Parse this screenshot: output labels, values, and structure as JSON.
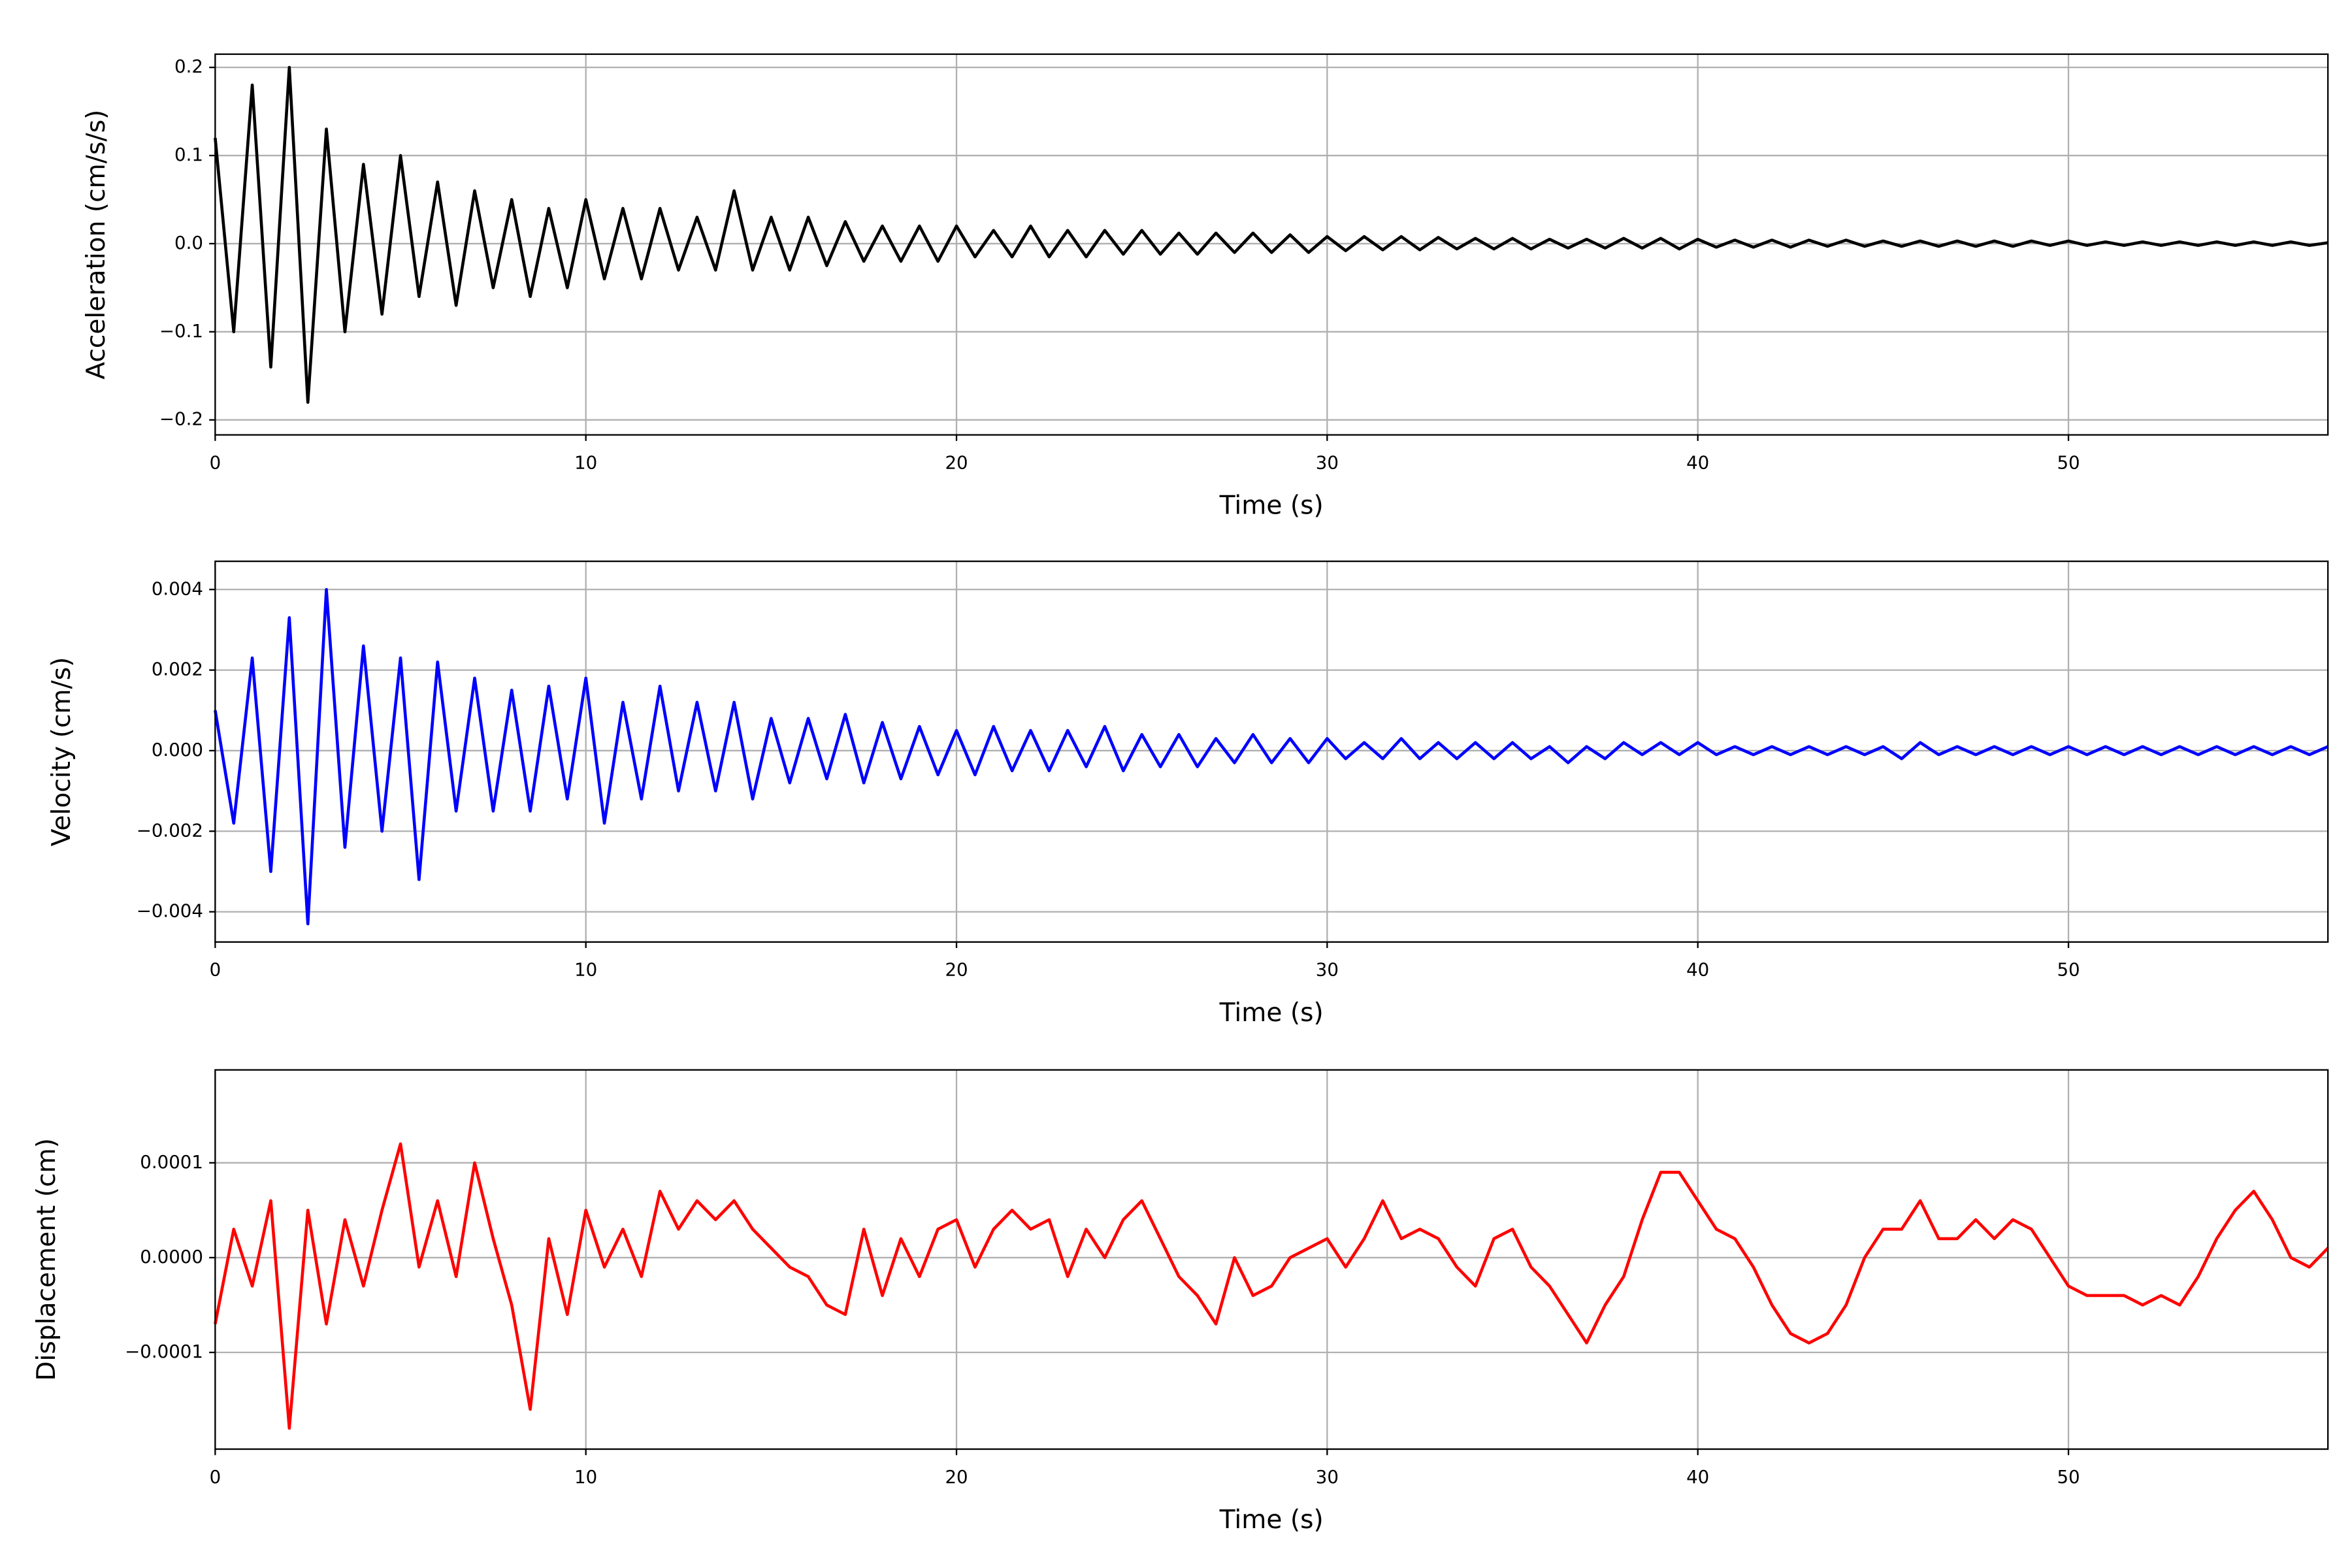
{
  "chart_data": [
    {
      "type": "line",
      "xlabel": "Time (s)",
      "ylabel": "Acceleration (cm/s/s)",
      "color": "#000000",
      "grid": true,
      "x": [
        0,
        0.5,
        1,
        1.5,
        2,
        2.5,
        3,
        3.5,
        4,
        4.5,
        5,
        5.5,
        6,
        6.5,
        7,
        7.5,
        8,
        8.5,
        9,
        9.5,
        10,
        10.5,
        11,
        11.5,
        12,
        12.5,
        13,
        13.5,
        14,
        14.5,
        15,
        15.5,
        16,
        16.5,
        17,
        17.5,
        18,
        18.5,
        19,
        19.5,
        20,
        20.5,
        21,
        21.5,
        22,
        22.5,
        23,
        23.5,
        24,
        24.5,
        25,
        25.5,
        26,
        26.5,
        27,
        27.5,
        28,
        28.5,
        29,
        29.5,
        30,
        30.5,
        31,
        31.5,
        32,
        32.5,
        33,
        33.5,
        34,
        34.5,
        35,
        35.5,
        36,
        36.5,
        37,
        37.5,
        38,
        38.5,
        39,
        39.5,
        40,
        40.5,
        41,
        41.5,
        42,
        42.5,
        43,
        43.5,
        44,
        44.5,
        45,
        45.5,
        46,
        46.5,
        47,
        47.5,
        48,
        48.5,
        49,
        49.5,
        50,
        50.5,
        51,
        51.5,
        52,
        52.5,
        53,
        53.5,
        54,
        54.5,
        55,
        55.5,
        56,
        56.5,
        57
      ],
      "values": [
        0.12,
        -0.1,
        0.18,
        -0.14,
        0.2,
        -0.18,
        0.13,
        -0.1,
        0.09,
        -0.08,
        0.1,
        -0.06,
        0.07,
        -0.07,
        0.06,
        -0.05,
        0.05,
        -0.06,
        0.04,
        -0.05,
        0.05,
        -0.04,
        0.04,
        -0.04,
        0.04,
        -0.03,
        0.03,
        -0.03,
        0.06,
        -0.03,
        0.03,
        -0.03,
        0.03,
        -0.025,
        0.025,
        -0.02,
        0.02,
        -0.02,
        0.02,
        -0.02,
        0.02,
        -0.015,
        0.015,
        -0.015,
        0.02,
        -0.015,
        0.015,
        -0.015,
        0.015,
        -0.012,
        0.015,
        -0.012,
        0.012,
        -0.012,
        0.012,
        -0.01,
        0.012,
        -0.01,
        0.01,
        -0.01,
        0.008,
        -0.008,
        0.008,
        -0.007,
        0.008,
        -0.007,
        0.007,
        -0.006,
        0.006,
        -0.006,
        0.006,
        -0.006,
        0.005,
        -0.005,
        0.005,
        -0.005,
        0.006,
        -0.005,
        0.006,
        -0.006,
        0.005,
        -0.004,
        0.004,
        -0.004,
        0.004,
        -0.004,
        0.004,
        -0.003,
        0.004,
        -0.003,
        0.003,
        -0.003,
        0.003,
        -0.003,
        0.003,
        -0.003,
        0.003,
        -0.003,
        0.003,
        -0.002,
        0.003,
        -0.002,
        0.002,
        -0.002,
        0.002,
        -0.002,
        0.002,
        -0.002,
        0.002,
        -0.002,
        0.002,
        -0.002,
        0.002,
        -0.002,
        0.001
      ],
      "xlim": [
        0,
        57
      ],
      "xticks": [
        0,
        10,
        20,
        30,
        40,
        50
      ],
      "ylim": [
        -0.217,
        0.215
      ],
      "yticks": [
        {
          "value": -0.2,
          "label": "−0.2"
        },
        {
          "value": -0.1,
          "label": "−0.1"
        },
        {
          "value": 0,
          "label": "0.0"
        },
        0.1,
        0.2
      ]
    },
    {
      "type": "line",
      "xlabel": "Time (s)",
      "ylabel": "Velocity (cm/s)",
      "color": "#0000ff",
      "grid": true,
      "x": [
        0,
        0.5,
        1,
        1.5,
        2,
        2.5,
        3,
        3.5,
        4,
        4.5,
        5,
        5.5,
        6,
        6.5,
        7,
        7.5,
        8,
        8.5,
        9,
        9.5,
        10,
        10.5,
        11,
        11.5,
        12,
        12.5,
        13,
        13.5,
        14,
        14.5,
        15,
        15.5,
        16,
        16.5,
        17,
        17.5,
        18,
        18.5,
        19,
        19.5,
        20,
        20.5,
        21,
        21.5,
        22,
        22.5,
        23,
        23.5,
        24,
        24.5,
        25,
        25.5,
        26,
        26.5,
        27,
        27.5,
        28,
        28.5,
        29,
        29.5,
        30,
        30.5,
        31,
        31.5,
        32,
        32.5,
        33,
        33.5,
        34,
        34.5,
        35,
        35.5,
        36,
        36.5,
        37,
        37.5,
        38,
        38.5,
        39,
        39.5,
        40,
        40.5,
        41,
        41.5,
        42,
        42.5,
        43,
        43.5,
        44,
        44.5,
        45,
        45.5,
        46,
        46.5,
        47,
        47.5,
        48,
        48.5,
        49,
        49.5,
        50,
        50.5,
        51,
        51.5,
        52,
        52.5,
        53,
        53.5,
        54,
        54.5,
        55,
        55.5,
        56,
        56.5,
        57
      ],
      "values": [
        0.001,
        -0.0018,
        0.0023,
        -0.003,
        0.0033,
        -0.0043,
        0.004,
        -0.0024,
        0.0026,
        -0.002,
        0.0023,
        -0.0032,
        0.0022,
        -0.0015,
        0.0018,
        -0.0015,
        0.0015,
        -0.0015,
        0.0016,
        -0.0012,
        0.0018,
        -0.0018,
        0.0012,
        -0.0012,
        0.0016,
        -0.001,
        0.0012,
        -0.001,
        0.0012,
        -0.0012,
        0.0008,
        -0.0008,
        0.0008,
        -0.0007,
        0.0009,
        -0.0008,
        0.0007,
        -0.0007,
        0.0006,
        -0.0006,
        0.0005,
        -0.0006,
        0.0006,
        -0.0005,
        0.0005,
        -0.0005,
        0.0005,
        -0.0004,
        0.0006,
        -0.0005,
        0.0004,
        -0.0004,
        0.0004,
        -0.0004,
        0.0003,
        -0.0003,
        0.0004,
        -0.0003,
        0.0003,
        -0.0003,
        0.0003,
        -0.0002,
        0.0002,
        -0.0002,
        0.0003,
        -0.0002,
        0.0002,
        -0.0002,
        0.0002,
        -0.0002,
        0.0002,
        -0.0002,
        0.0001,
        -0.0003,
        0.0001,
        -0.0002,
        0.0002,
        -0.0001,
        0.0002,
        -0.0001,
        0.0002,
        -0.0001,
        0.0001,
        -0.0001,
        0.0001,
        -0.0001,
        0.0001,
        -0.0001,
        0.0001,
        -0.0001,
        0.0001,
        -0.0002,
        0.0002,
        -0.0001,
        0.0001,
        -0.0001,
        0.0001,
        -0.0001,
        0.0001,
        -0.0001,
        0.0001,
        -0.0001,
        0.0001,
        -0.0001,
        0.0001,
        -0.0001,
        0.0001,
        -0.0001,
        0.0001,
        -0.0001,
        0.0001,
        -0.0001,
        0.0001,
        -0.0001,
        0.0001
      ],
      "xlim": [
        0,
        57
      ],
      "xticks": [
        0,
        10,
        20,
        30,
        40,
        50
      ],
      "ylim": [
        -0.00475,
        0.0047
      ],
      "yticks": [
        {
          "value": -0.004,
          "label": "−0.004"
        },
        {
          "value": -0.002,
          "label": "−0.002"
        },
        {
          "value": 0,
          "label": "0.000"
        },
        0.002,
        0.004
      ]
    },
    {
      "type": "line",
      "xlabel": "Time (s)",
      "ylabel": "Displacement (cm)",
      "color": "#ff0000",
      "grid": true,
      "x": [
        0,
        0.5,
        1,
        1.5,
        2,
        2.5,
        3,
        3.5,
        4,
        4.5,
        5,
        5.5,
        6,
        6.5,
        7,
        7.5,
        8,
        8.5,
        9,
        9.5,
        10,
        10.5,
        11,
        11.5,
        12,
        12.5,
        13,
        13.5,
        14,
        14.5,
        15,
        15.5,
        16,
        16.5,
        17,
        17.5,
        18,
        18.5,
        19,
        19.5,
        20,
        20.5,
        21,
        21.5,
        22,
        22.5,
        23,
        23.5,
        24,
        24.5,
        25,
        25.5,
        26,
        26.5,
        27,
        27.5,
        28,
        28.5,
        29,
        29.5,
        30,
        30.5,
        31,
        31.5,
        32,
        32.5,
        33,
        33.5,
        34,
        34.5,
        35,
        35.5,
        36,
        36.5,
        37,
        37.5,
        38,
        38.5,
        39,
        39.5,
        40,
        40.5,
        41,
        41.5,
        42,
        42.5,
        43,
        43.5,
        44,
        44.5,
        45,
        45.5,
        46,
        46.5,
        47,
        47.5,
        48,
        48.5,
        49,
        49.5,
        50,
        50.5,
        51,
        51.5,
        52,
        52.5,
        53,
        53.5,
        54,
        54.5,
        55,
        55.5,
        56,
        56.5,
        57
      ],
      "values": [
        -7e-05,
        3e-05,
        -3e-05,
        6e-05,
        -0.00018,
        5e-05,
        -7e-05,
        4e-05,
        -3e-05,
        5e-05,
        0.00012,
        -1e-05,
        6e-05,
        -2e-05,
        0.0001,
        2e-05,
        -5e-05,
        -0.00016,
        2e-05,
        -6e-05,
        5e-05,
        -1e-05,
        3e-05,
        -2e-05,
        7e-05,
        3e-05,
        6e-05,
        4e-05,
        6e-05,
        3e-05,
        1e-05,
        -1e-05,
        -2e-05,
        -5e-05,
        -6e-05,
        3e-05,
        -4e-05,
        2e-05,
        -2e-05,
        3e-05,
        4e-05,
        -1e-05,
        3e-05,
        5e-05,
        3e-05,
        4e-05,
        -2e-05,
        3e-05,
        0,
        4e-05,
        6e-05,
        2e-05,
        -2e-05,
        -4e-05,
        -7e-05,
        0,
        -4e-05,
        -3e-05,
        0,
        1e-05,
        2e-05,
        -1e-05,
        2e-05,
        6e-05,
        2e-05,
        3e-05,
        2e-05,
        -1e-05,
        -3e-05,
        2e-05,
        3e-05,
        -1e-05,
        -3e-05,
        -6e-05,
        -9e-05,
        -5e-05,
        -2e-05,
        4e-05,
        9e-05,
        9e-05,
        6e-05,
        3e-05,
        2e-05,
        -1e-05,
        -5e-05,
        -8e-05,
        -9e-05,
        -8e-05,
        -5e-05,
        0,
        3e-05,
        3e-05,
        6e-05,
        2e-05,
        2e-05,
        4e-05,
        2e-05,
        4e-05,
        3e-05,
        0,
        -3e-05,
        -4e-05,
        -4e-05,
        -4e-05,
        -5e-05,
        -4e-05,
        -5e-05,
        -2e-05,
        2e-05,
        5e-05,
        7e-05,
        4e-05,
        0,
        -1e-05,
        1e-05
      ],
      "xlim": [
        0,
        57
      ],
      "xticks": [
        0,
        10,
        20,
        30,
        40,
        50
      ],
      "ylim": [
        -0.000202,
        0.000198
      ],
      "yticks": [
        {
          "value": -0.0001,
          "label": "−0.0001"
        },
        {
          "value": 0,
          "label": "0.0000"
        },
        0.0001
      ]
    }
  ]
}
